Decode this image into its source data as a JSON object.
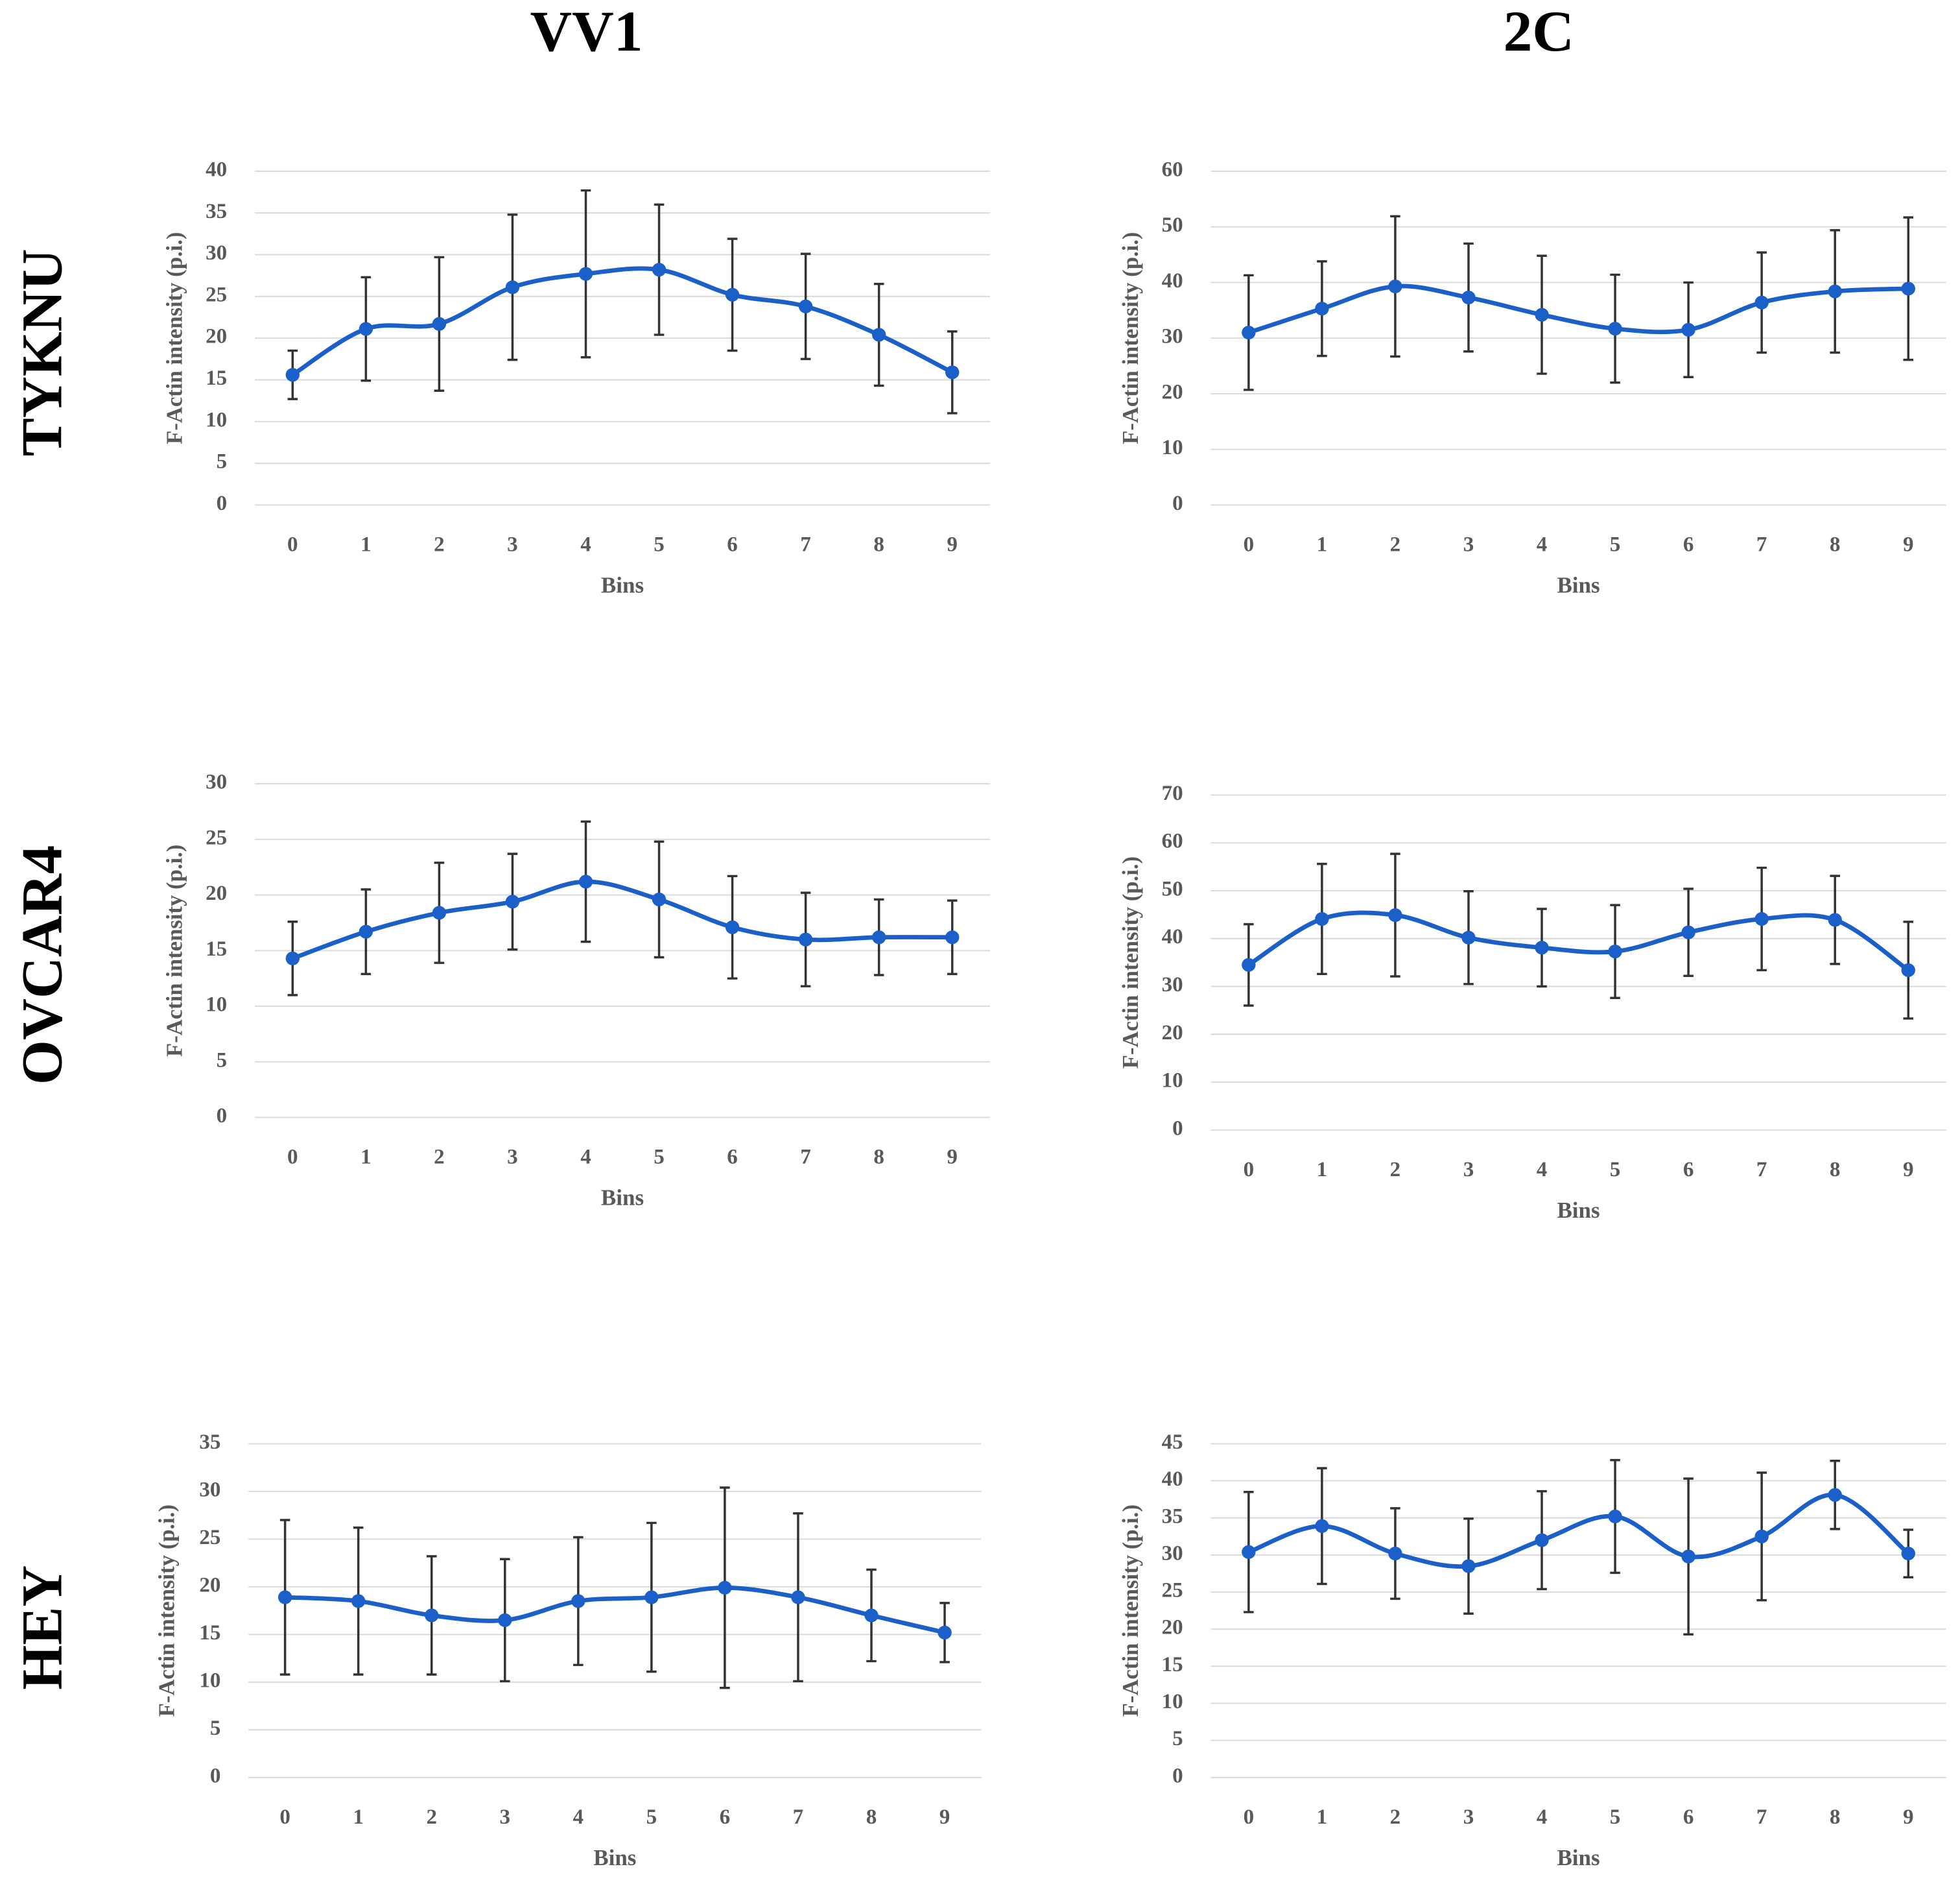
{
  "page": {
    "column_titles": [
      "VV1",
      "2C"
    ],
    "row_titles": [
      "TYKNU",
      "OVCAR4",
      "HEY"
    ]
  },
  "chart_data": [
    {
      "type": "line",
      "ylabel": "F-Actin intensity (p.i.)",
      "xlabel": "Bins",
      "categories": [
        0,
        1,
        2,
        3,
        4,
        5,
        6,
        7,
        8,
        9
      ],
      "ylim": [
        0,
        40
      ],
      "yticks": [
        0,
        5,
        10,
        15,
        20,
        25,
        30,
        35,
        40
      ],
      "grid": true,
      "series": [
        {
          "color": "#1b5fc8",
          "values": [
            15.6,
            21.1,
            21.7,
            26.1,
            27.7,
            28.2,
            25.2,
            23.8,
            20.4,
            15.9
          ],
          "errors": [
            2.9,
            6.2,
            8.0,
            8.7,
            10.0,
            7.8,
            6.7,
            6.3,
            6.1,
            4.9
          ]
        }
      ]
    },
    {
      "type": "line",
      "ylabel": "F-Actin intensity (p.i.)",
      "xlabel": "Bins",
      "categories": [
        0,
        1,
        2,
        3,
        4,
        5,
        6,
        7,
        8,
        9
      ],
      "ylim": [
        0,
        60
      ],
      "yticks": [
        0,
        10,
        20,
        30,
        40,
        50,
        60
      ],
      "grid": true,
      "series": [
        {
          "color": "#1b5fc8",
          "values": [
            31.0,
            35.3,
            39.3,
            37.3,
            34.2,
            31.7,
            31.5,
            36.4,
            38.4,
            38.9
          ],
          "errors": [
            10.3,
            8.5,
            12.6,
            9.7,
            10.6,
            9.7,
            8.5,
            9.0,
            11.0,
            12.8
          ]
        }
      ]
    },
    {
      "type": "line",
      "ylabel": "F-Actin intensity (p.i.)",
      "xlabel": "Bins",
      "categories": [
        0,
        1,
        2,
        3,
        4,
        5,
        6,
        7,
        8,
        9
      ],
      "ylim": [
        0,
        30
      ],
      "yticks": [
        0,
        5,
        10,
        15,
        20,
        25,
        30
      ],
      "grid": true,
      "series": [
        {
          "color": "#1b5fc8",
          "values": [
            14.3,
            16.7,
            18.4,
            19.4,
            21.2,
            19.6,
            17.1,
            16.0,
            16.2,
            16.2
          ],
          "errors": [
            3.3,
            3.8,
            4.5,
            4.3,
            5.4,
            5.2,
            4.6,
            4.2,
            3.4,
            3.3
          ]
        }
      ]
    },
    {
      "type": "line",
      "ylabel": "F-Actin intensity (p.i.)",
      "xlabel": "Bins",
      "categories": [
        0,
        1,
        2,
        3,
        4,
        5,
        6,
        7,
        8,
        9
      ],
      "ylim": [
        0,
        70
      ],
      "yticks": [
        0,
        10,
        20,
        30,
        40,
        50,
        60,
        70
      ],
      "grid": true,
      "series": [
        {
          "color": "#1b5fc8",
          "values": [
            34.5,
            44.1,
            44.9,
            40.2,
            38.1,
            37.3,
            41.3,
            44.1,
            43.9,
            33.4
          ],
          "errors": [
            8.5,
            11.5,
            12.8,
            9.7,
            8.1,
            9.7,
            9.1,
            10.7,
            9.2,
            10.1
          ]
        }
      ]
    },
    {
      "type": "line",
      "ylabel": "F-Actin intensity (p.i.)",
      "xlabel": "Bins",
      "categories": [
        0,
        1,
        2,
        3,
        4,
        5,
        6,
        7,
        8,
        9
      ],
      "ylim": [
        0,
        35
      ],
      "yticks": [
        0,
        5,
        10,
        15,
        20,
        25,
        30,
        35
      ],
      "grid": true,
      "series": [
        {
          "color": "#1b5fc8",
          "values": [
            18.9,
            18.5,
            17.0,
            16.5,
            18.5,
            18.9,
            19.9,
            18.9,
            17.0,
            15.2
          ],
          "errors": [
            8.1,
            7.7,
            6.2,
            6.4,
            6.7,
            7.8,
            10.5,
            8.8,
            4.8,
            3.1
          ]
        }
      ]
    },
    {
      "type": "line",
      "ylabel": "F-Actin intensity (p.i.)",
      "xlabel": "Bins",
      "categories": [
        0,
        1,
        2,
        3,
        4,
        5,
        6,
        7,
        8,
        9
      ],
      "ylim": [
        0,
        45
      ],
      "yticks": [
        0,
        5,
        10,
        15,
        20,
        25,
        30,
        35,
        40,
        45
      ],
      "grid": true,
      "series": [
        {
          "color": "#1b5fc8",
          "values": [
            30.4,
            33.9,
            30.2,
            28.5,
            32.0,
            35.2,
            29.8,
            32.5,
            38.1,
            30.2
          ],
          "errors": [
            8.1,
            7.8,
            6.1,
            6.4,
            6.6,
            7.6,
            10.5,
            8.6,
            4.6,
            3.2
          ]
        }
      ]
    }
  ]
}
